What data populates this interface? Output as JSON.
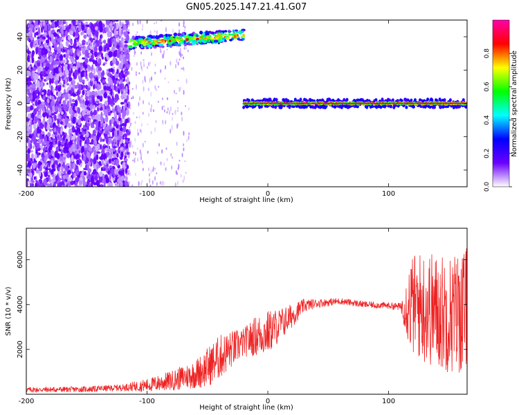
{
  "figure": {
    "title": "GN05.2025.147.21.41.G07"
  },
  "chart_data": [
    {
      "type": "heatmap",
      "title": "GN05.2025.147.21.41.G07",
      "xlabel": "Height of straight line (km)",
      "ylabel": "Frequency (Hz)",
      "xlim": [
        -200,
        165
      ],
      "ylim": [
        -50,
        50
      ],
      "xticks": [
        -200,
        -100,
        0,
        100
      ],
      "yticks": [
        40,
        20,
        0,
        -20,
        -40
      ],
      "colorbar": {
        "label": "Normalized spectral amplitude",
        "range": [
          0,
          1
        ],
        "ticks": [
          "0.0",
          "0.2",
          "0.4",
          "0.6",
          "0.8"
        ],
        "colors": [
          "#ffffff",
          "#6a00ff",
          "#0000ff",
          "#00ffff",
          "#00ff00",
          "#ffff00",
          "#ff0000",
          "#ff00aa"
        ]
      },
      "features": [
        {
          "name": "upper trace",
          "x": [
            -115,
            -20
          ],
          "frequency_start": 36,
          "frequency_end": 41,
          "amplitude": 0.6
        },
        {
          "name": "zero trace",
          "x": [
            -20,
            165
          ],
          "frequency": 0,
          "amplitude": 0.8
        },
        {
          "name": "noise region",
          "x": [
            -200,
            -115
          ],
          "frequency": [
            -50,
            50
          ],
          "amplitude": 0.1
        }
      ]
    },
    {
      "type": "line",
      "xlabel": "Height of straight line (km)",
      "ylabel": "SNR (10 * v/v)",
      "xlim": [
        -200,
        165
      ],
      "ylim": [
        0,
        7400
      ],
      "xticks": [
        -200,
        -100,
        0,
        100
      ],
      "yticks": [
        2000,
        4000,
        6000
      ],
      "color": "#ee2222",
      "series": [
        {
          "x": [
            -200,
            -150,
            -120,
            -100,
            -80,
            -60,
            -50,
            -40,
            -30,
            -20,
            -10,
            0,
            10,
            20,
            30,
            40,
            60,
            80,
            100,
            110,
            118,
            130,
            140,
            150,
            160,
            165
          ],
          "values": [
            200,
            220,
            300,
            400,
            600,
            900,
            1200,
            1650,
            2000,
            2300,
            2600,
            2750,
            3100,
            3500,
            3950,
            4050,
            4150,
            4000,
            3950,
            3900,
            4000,
            3900,
            3700,
            3600,
            3700,
            3800
          ],
          "spread": [
            120,
            130,
            150,
            300,
            450,
            650,
            900,
            1000,
            850,
            650,
            900,
            1000,
            750,
            550,
            300,
            200,
            150,
            150,
            150,
            180,
            2200,
            2600,
            2600,
            2700,
            2800,
            2800
          ]
        }
      ]
    }
  ]
}
